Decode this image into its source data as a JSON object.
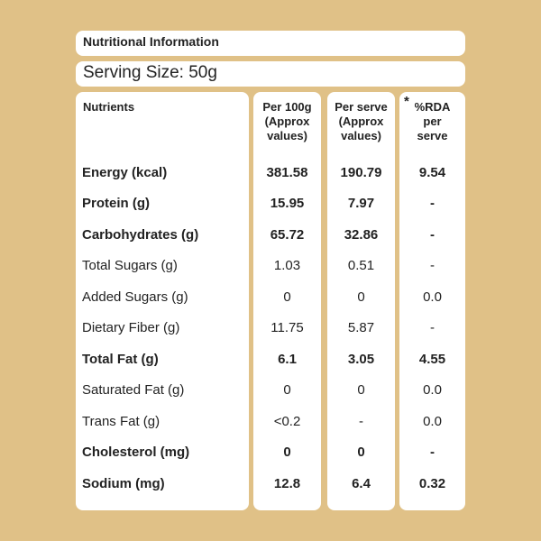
{
  "title": "Nutritional Information",
  "serving_size": "Serving Size: 50g",
  "headers": {
    "nutrients": "Nutrients",
    "per100": [
      "Per 100g",
      "(Approx",
      "values)"
    ],
    "perserve": [
      "Per serve",
      "(Approx",
      "values)"
    ],
    "rda_asterisk": "*",
    "rda": [
      "%RDA",
      "per",
      "serve"
    ]
  },
  "rows": [
    {
      "name": "Energy (kcal)",
      "bold": true,
      "per100": "381.58",
      "perserve": "190.79",
      "rda": "9.54"
    },
    {
      "name": "Protein (g)",
      "bold": true,
      "per100": "15.95",
      "perserve": "7.97",
      "rda": "-"
    },
    {
      "name": "Carbohydrates (g)",
      "bold": true,
      "per100": "65.72",
      "perserve": "32.86",
      "rda": "-"
    },
    {
      "name": "Total Sugars (g)",
      "bold": false,
      "per100": "1.03",
      "perserve": "0.51",
      "rda": "-"
    },
    {
      "name": "Added Sugars (g)",
      "bold": false,
      "per100": "0",
      "perserve": "0",
      "rda": "0.0"
    },
    {
      "name": "Dietary Fiber (g)",
      "bold": false,
      "per100": "11.75",
      "perserve": "5.87",
      "rda": "-"
    },
    {
      "name": "Total Fat (g)",
      "bold": true,
      "per100": "6.1",
      "perserve": "3.05",
      "rda": "4.55"
    },
    {
      "name": "Saturated Fat (g)",
      "bold": false,
      "per100": "0",
      "perserve": "0",
      "rda": "0.0"
    },
    {
      "name": "Trans Fat (g)",
      "bold": false,
      "per100": "<0.2",
      "perserve": "-",
      "rda": "0.0"
    },
    {
      "name": "Cholesterol (mg)",
      "bold": true,
      "per100": "0",
      "perserve": "0",
      "rda": "-"
    },
    {
      "name": "Sodium (mg)",
      "bold": true,
      "per100": "12.8",
      "perserve": "6.4",
      "rda": "0.32"
    }
  ]
}
